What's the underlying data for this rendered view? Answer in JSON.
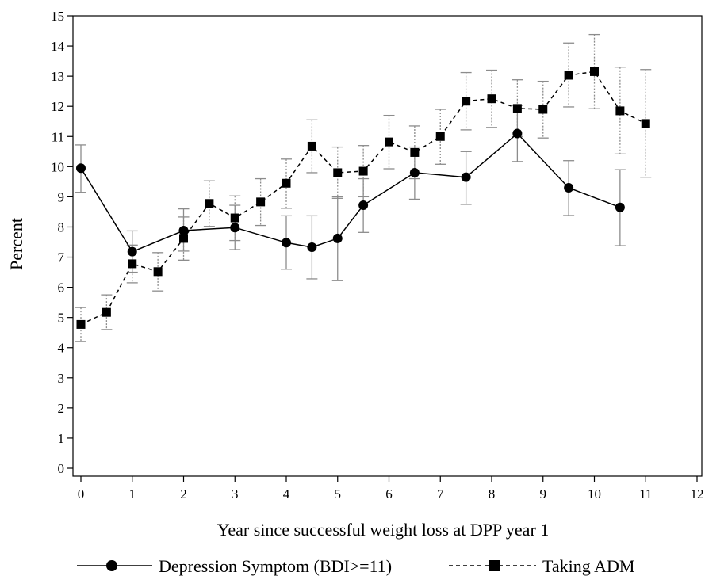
{
  "chart_data": {
    "type": "line",
    "xlabel": "Year since successful weight loss at DPP year 1",
    "ylabel": "Percent",
    "xlim": [
      0,
      12
    ],
    "ylim": [
      0,
      15
    ],
    "xticks": [
      0,
      1,
      2,
      3,
      4,
      5,
      6,
      7,
      8,
      9,
      10,
      11,
      12
    ],
    "yticks": [
      0,
      1,
      2,
      3,
      4,
      5,
      6,
      7,
      8,
      9,
      10,
      11,
      12,
      13,
      14,
      15
    ],
    "grid": false,
    "legend_position": "bottom",
    "series": [
      {
        "name": "Depression Symptom (BDI>=11)",
        "line_style": "solid",
        "marker": "circle",
        "color": "#000000",
        "error_bar_color": "#8c8c8c",
        "points": [
          {
            "x": 0,
            "y": 9.95,
            "lo": 9.15,
            "hi": 10.72
          },
          {
            "x": 1,
            "y": 7.18,
            "lo": 6.5,
            "hi": 7.87
          },
          {
            "x": 2,
            "y": 7.88,
            "lo": 7.2,
            "hi": 8.6
          },
          {
            "x": 3,
            "y": 7.98,
            "lo": 7.25,
            "hi": 8.72
          },
          {
            "x": 4,
            "y": 7.48,
            "lo": 6.6,
            "hi": 8.37
          },
          {
            "x": 4.5,
            "y": 7.33,
            "lo": 6.28,
            "hi": 8.37
          },
          {
            "x": 5,
            "y": 7.62,
            "lo": 6.22,
            "hi": 9.0
          },
          {
            "x": 5.5,
            "y": 8.72,
            "lo": 7.82,
            "hi": 9.6
          },
          {
            "x": 6.5,
            "y": 9.8,
            "lo": 8.92,
            "hi": 10.65
          },
          {
            "x": 7.5,
            "y": 9.65,
            "lo": 8.75,
            "hi": 10.5
          },
          {
            "x": 8.5,
            "y": 11.1,
            "lo": 10.17,
            "hi": 12.03
          },
          {
            "x": 9.5,
            "y": 9.3,
            "lo": 8.38,
            "hi": 10.2
          },
          {
            "x": 10.5,
            "y": 8.65,
            "lo": 7.38,
            "hi": 9.9
          }
        ]
      },
      {
        "name": "Taking ADM",
        "line_style": "dashed",
        "marker": "square",
        "color": "#000000",
        "error_bar_color": "#8c8c8c",
        "points": [
          {
            "x": 0,
            "y": 4.77,
            "lo": 4.2,
            "hi": 5.33
          },
          {
            "x": 0.5,
            "y": 5.17,
            "lo": 4.6,
            "hi": 5.75
          },
          {
            "x": 1,
            "y": 6.78,
            "lo": 6.15,
            "hi": 7.4
          },
          {
            "x": 1.5,
            "y": 6.52,
            "lo": 5.88,
            "hi": 7.15
          },
          {
            "x": 2,
            "y": 7.62,
            "lo": 6.9,
            "hi": 8.33
          },
          {
            "x": 2.5,
            "y": 8.78,
            "lo": 8.02,
            "hi": 9.53
          },
          {
            "x": 3,
            "y": 8.3,
            "lo": 7.55,
            "hi": 9.03
          },
          {
            "x": 3.5,
            "y": 8.83,
            "lo": 8.05,
            "hi": 9.6
          },
          {
            "x": 4,
            "y": 9.45,
            "lo": 8.62,
            "hi": 10.25
          },
          {
            "x": 4.5,
            "y": 10.68,
            "lo": 9.8,
            "hi": 11.55
          },
          {
            "x": 5,
            "y": 9.8,
            "lo": 8.95,
            "hi": 10.65
          },
          {
            "x": 5.5,
            "y": 9.85,
            "lo": 9.0,
            "hi": 10.7
          },
          {
            "x": 6,
            "y": 10.82,
            "lo": 9.93,
            "hi": 11.7
          },
          {
            "x": 6.5,
            "y": 10.47,
            "lo": 9.6,
            "hi": 11.35
          },
          {
            "x": 7,
            "y": 11.0,
            "lo": 10.08,
            "hi": 11.9
          },
          {
            "x": 7.5,
            "y": 12.17,
            "lo": 11.22,
            "hi": 13.12
          },
          {
            "x": 8,
            "y": 12.25,
            "lo": 11.3,
            "hi": 13.2
          },
          {
            "x": 8.5,
            "y": 11.93,
            "lo": 11.0,
            "hi": 12.88
          },
          {
            "x": 9,
            "y": 11.9,
            "lo": 10.95,
            "hi": 12.83
          },
          {
            "x": 9.5,
            "y": 13.03,
            "lo": 11.98,
            "hi": 14.1
          },
          {
            "x": 10,
            "y": 13.15,
            "lo": 11.92,
            "hi": 14.38
          },
          {
            "x": 10.5,
            "y": 11.85,
            "lo": 10.42,
            "hi": 13.3
          },
          {
            "x": 11,
            "y": 11.43,
            "lo": 9.65,
            "hi": 13.22
          }
        ]
      }
    ]
  }
}
